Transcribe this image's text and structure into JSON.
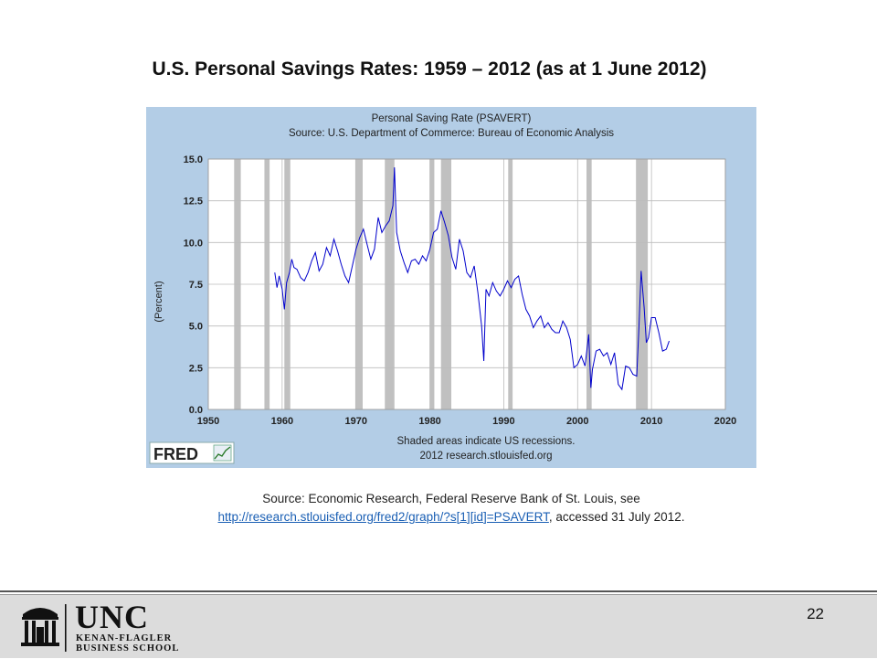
{
  "slide": {
    "title": "U.S. Personal Savings Rates: 1959 – 2012 (as at 1 June 2012)",
    "source_text": "Source: Economic Research, Federal Reserve Bank of St. Louis, see",
    "source_link": "http://research.stlouisfed.org/fred2/graph/?s[1][id]=PSAVERT",
    "source_suffix": ", accessed 31 July 2012.",
    "page_number": "22",
    "logo": {
      "unc": "UNC",
      "line1": "KENAN-FLAGLER",
      "line2": "BUSINESS SCHOOL"
    }
  },
  "colors": {
    "chart_background": "#b3cde6",
    "plot_background": "#ffffff",
    "series": "#0000cc",
    "recession": "#c0c0c0",
    "link": "#1a5fb4"
  },
  "chart_data": {
    "type": "line",
    "title": "Personal Saving Rate (PSAVERT)",
    "subtitle": "Source: U.S. Department of Commerce: Bureau of Economic Analysis",
    "ylabel": "(Percent)",
    "xlim": [
      1950,
      2020
    ],
    "ylim": [
      0,
      15
    ],
    "xticks": [
      "1950",
      "1960",
      "1970",
      "1980",
      "1990",
      "2000",
      "2010",
      "2020"
    ],
    "yticks": [
      "0.0",
      "2.5",
      "5.0",
      "7.5",
      "10.0",
      "12.5",
      "15.0"
    ],
    "note1": "Shaded areas indicate US recessions.",
    "note2": "2012 research.stlouisfed.org",
    "logo_text": "FRED",
    "recessions": [
      [
        1953.5,
        1954.4
      ],
      [
        1957.6,
        1958.3
      ],
      [
        1960.3,
        1961.1
      ],
      [
        1969.9,
        1970.9
      ],
      [
        1973.9,
        1975.2
      ],
      [
        1980.0,
        1980.6
      ],
      [
        1981.5,
        1982.9
      ],
      [
        1990.6,
        1991.2
      ],
      [
        2001.2,
        2001.9
      ],
      [
        2007.9,
        2009.5
      ]
    ],
    "series": [
      {
        "x": [
          1959.0,
          1959.3,
          1959.6,
          1960.0,
          1960.3,
          1960.6,
          1961.0,
          1961.3,
          1961.6,
          1962.0,
          1962.5,
          1963.0,
          1963.5,
          1964.0,
          1964.5,
          1965.0,
          1965.5,
          1966.0,
          1966.5,
          1967.0,
          1967.5,
          1968.0,
          1968.5,
          1969.0,
          1969.5,
          1970.0,
          1970.5,
          1971.0,
          1971.5,
          1972.0,
          1972.5,
          1973.0,
          1973.5,
          1974.0,
          1974.5,
          1975.0,
          1975.2,
          1975.5,
          1976.0,
          1976.5,
          1977.0,
          1977.5,
          1978.0,
          1978.5,
          1979.0,
          1979.5,
          1980.0,
          1980.5,
          1981.0,
          1981.5,
          1982.0,
          1982.5,
          1983.0,
          1983.5,
          1984.0,
          1984.5,
          1985.0,
          1985.5,
          1986.0,
          1986.5,
          1987.0,
          1987.3,
          1987.6,
          1988.0,
          1988.5,
          1989.0,
          1989.5,
          1990.0,
          1990.5,
          1991.0,
          1991.5,
          1992.0,
          1992.5,
          1993.0,
          1993.5,
          1994.0,
          1994.5,
          1995.0,
          1995.5,
          1996.0,
          1996.5,
          1997.0,
          1997.5,
          1998.0,
          1998.5,
          1999.0,
          1999.5,
          2000.0,
          2000.5,
          2001.0,
          2001.5,
          2001.8,
          2002.0,
          2002.5,
          2003.0,
          2003.5,
          2004.0,
          2004.5,
          2005.0,
          2005.5,
          2006.0,
          2006.5,
          2007.0,
          2007.5,
          2008.0,
          2008.3,
          2008.6,
          2009.0,
          2009.3,
          2009.6,
          2010.0,
          2010.5,
          2011.0,
          2011.5,
          2012.0,
          2012.4
        ],
        "y": [
          8.2,
          7.3,
          8.0,
          7.2,
          6.0,
          7.6,
          8.2,
          9.0,
          8.5,
          8.4,
          7.9,
          7.7,
          8.2,
          8.9,
          9.4,
          8.3,
          8.7,
          9.7,
          9.2,
          10.2,
          9.5,
          8.7,
          8.0,
          7.6,
          8.6,
          9.6,
          10.3,
          10.8,
          9.9,
          9.0,
          9.6,
          11.5,
          10.6,
          11.0,
          11.3,
          12.2,
          14.5,
          10.6,
          9.5,
          8.8,
          8.2,
          8.9,
          9.0,
          8.7,
          9.2,
          8.9,
          9.6,
          10.6,
          10.8,
          11.9,
          11.2,
          10.4,
          9.1,
          8.4,
          10.2,
          9.5,
          8.2,
          7.9,
          8.6,
          7.0,
          5.0,
          2.9,
          7.2,
          6.8,
          7.6,
          7.1,
          6.8,
          7.2,
          7.7,
          7.3,
          7.8,
          8.0,
          6.9,
          6.0,
          5.6,
          4.9,
          5.3,
          5.6,
          4.9,
          5.2,
          4.8,
          4.6,
          4.6,
          5.3,
          4.9,
          4.2,
          2.5,
          2.7,
          3.2,
          2.6,
          4.5,
          1.3,
          2.4,
          3.5,
          3.6,
          3.2,
          3.4,
          2.7,
          3.4,
          1.5,
          1.2,
          2.6,
          2.5,
          2.1,
          2.0,
          4.9,
          8.3,
          6.1,
          4.0,
          4.3,
          5.5,
          5.5,
          4.6,
          3.5,
          3.6,
          4.1
        ]
      }
    ]
  }
}
